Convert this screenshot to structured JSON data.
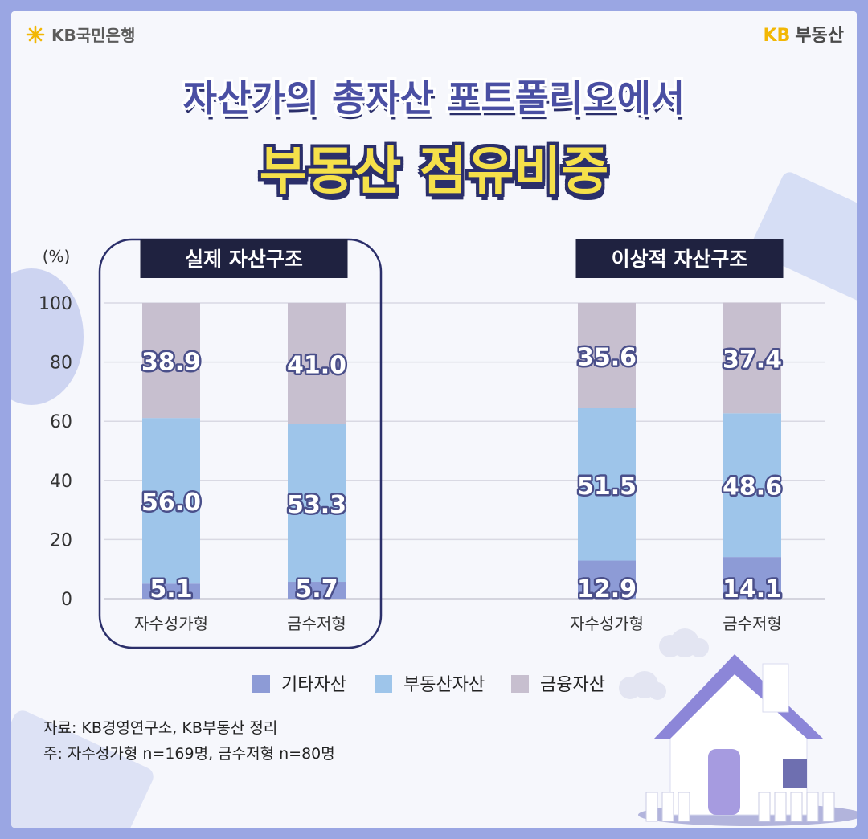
{
  "header": {
    "bank_logo": "KB국민은행",
    "brand_kb": "KB",
    "brand_name": "부동산"
  },
  "title": {
    "line1": "자산가의 총자산 포트폴리오에서",
    "line2": "부동산 점유비중"
  },
  "colors": {
    "other": "#8d9bd6",
    "realestate": "#9ec5ea",
    "financial": "#c7bfcf",
    "label_header_bg": "#1f2240"
  },
  "chart_data": {
    "type": "bar",
    "stacked": true,
    "ylabel": "(%)",
    "ylim": [
      0,
      100
    ],
    "yticks": [
      0,
      20,
      40,
      60,
      80,
      100
    ],
    "grid": true,
    "legend_placement": "bottom",
    "groups": [
      {
        "label": "실제 자산구조",
        "highlighted": true,
        "categories": [
          "자수성가형",
          "금수저형"
        ]
      },
      {
        "label": "이상적 자산구조",
        "highlighted": false,
        "categories": [
          "자수성가형",
          "금수저형"
        ]
      }
    ],
    "categories": [
      "자수성가형",
      "금수저형",
      "자수성가형",
      "금수저형"
    ],
    "series": [
      {
        "name": "기타자산",
        "values": [
          5.1,
          5.7,
          12.9,
          14.1
        ]
      },
      {
        "name": "부동산자산",
        "values": [
          56.0,
          53.3,
          51.5,
          48.6
        ]
      },
      {
        "name": "금융자산",
        "values": [
          38.9,
          41.0,
          35.6,
          37.4
        ]
      }
    ],
    "value_labels": [
      [
        "5.1",
        "5.7",
        "12.9",
        "14.1"
      ],
      [
        "56.0",
        "53.3",
        "51.5",
        "48.6"
      ],
      [
        "38.9",
        "41.0",
        "35.6",
        "37.4"
      ]
    ]
  },
  "source": {
    "line1": "자료: KB경영연구소, KB부동산 정리",
    "line2": "주: 자수성가형 n=169명, 금수저형 n=80명"
  }
}
